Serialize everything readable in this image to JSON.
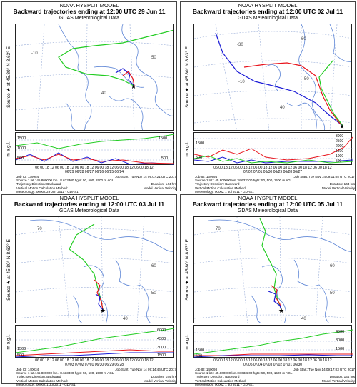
{
  "colors": {
    "red": "#e8141c",
    "blue": "#1a1ad6",
    "green": "#22cc22",
    "coast": "#5e86d6",
    "grid": "#9aaed8"
  },
  "panels": [
    {
      "model": "NOAA HYSPLIT MODEL",
      "title": "Backward trajectories ending at 12:00 UTC 29 Jun 11",
      "met": "GDAS Meteorological Data",
      "source": "Source ★ at   45.80° N   8.63° E",
      "unit": "m a.g.l.",
      "map_labels": [
        "-10",
        "50",
        "40"
      ],
      "height_labels": [
        "1500",
        "1000",
        "500",
        "1500",
        "500"
      ],
      "date_ticks": "06 00 18 12 06 00 18 12 06 00 18 12 06 00 18 12 06 00 18 12 06 00 18 12",
      "date_labels": "06/29   06/28   06/27   06/26   06/25   06/24",
      "info": [
        [
          "Job ID: 139954",
          "Job Start: Tue Nov 14 09:07:21 UTC 2017"
        ],
        [
          "Source 1 lat.: 45.800000  lon.: 8.633300  hgts: 50, 500, 1500 m AGL",
          ""
        ],
        [
          "Trajectory Direction: Backward",
          "Duration: 144 hrs"
        ],
        [
          "Vertical Motion Calculation Method:",
          "Model Vertical Velocity"
        ],
        [
          "Meteorology: 0000Z 29 Jun 2011 - GDAS1",
          ""
        ]
      ]
    },
    {
      "model": "NOAA HYSPLIT MODEL",
      "title": "Backward trajectories ending at 12:00 UTC 02 Jul 11",
      "met": "GDAS Meteorological Data",
      "source": "Source ★ at   45.80° N   8.63° E",
      "unit": "m a.g.l.",
      "map_labels": [
        "-30",
        "60",
        "-10",
        "50",
        "40"
      ],
      "height_labels": [
        "3000",
        "2500",
        "2000",
        "1500",
        "1000",
        "500",
        "1500",
        "500"
      ],
      "date_ticks": "06 00 18 12 06 00 18 12 06 00 18 12 06 00 18 12 06 00 18 12 06 00 18 12",
      "date_labels": "07/02   07/01   06/30   06/29   06/28   06/27",
      "info": [
        [
          "Job ID: 139994",
          "Job Start: Tue Nov 14 09:11:05 UTC 2017"
        ],
        [
          "Source 1 lat.: 45.800000  lon.: 8.633300  hgts: 50, 500, 1500 m AGL",
          ""
        ],
        [
          "Trajectory Direction: Backward",
          "Duration: 144 hrs"
        ],
        [
          "Vertical Motion Calculation Method:",
          "Model Vertical Velocity"
        ],
        [
          "Meteorology: 0000Z 1 Jul 2011 - GDAS1",
          ""
        ]
      ]
    },
    {
      "model": "NOAA HYSPLIT MODEL",
      "title": "Backward trajectories ending at 12:00 UTC 03 Jul 11",
      "met": "GDAS Meteorological Data",
      "source": "Source ★ at   45.80° N   8.63° E",
      "unit": "m a.g.l.",
      "map_labels": [
        "70",
        "60",
        "50",
        "40"
      ],
      "height_labels": [
        "6000",
        "4500",
        "3000",
        "1500",
        "1500",
        "500"
      ],
      "date_ticks": "06 00 18 12 06 00 18 12 06 00 18 12 06 00 18 12 06 00 18 12 06 00 18 12",
      "date_labels": "07/03   07/02   07/01   06/30   06/29   06/28",
      "info": [
        [
          "Job ID: 140034",
          "Job Start: Tue Nov 14 09:14:46 UTC 2017"
        ],
        [
          "Source 1 lat.: 45.800000  lon.: 8.633300  hgts: 50, 500, 1500 m AGL",
          ""
        ],
        [
          "Trajectory Direction: Backward",
          "Duration: 144 hrs"
        ],
        [
          "Vertical Motion Calculation Method:",
          "Model Vertical Velocity"
        ],
        [
          "Meteorology: 0000Z 1 Jul 2011 - GDAS1",
          ""
        ]
      ]
    },
    {
      "model": "NOAA HYSPLIT MODEL",
      "title": "Backward trajectories ending at 12:00 UTC 05 Jul 11",
      "met": "GDAS Meteorological Data",
      "source": "Source ★ at   45.80° N   8.63° E",
      "unit": "m a.g.l.",
      "map_labels": [
        "70",
        "60",
        "50",
        "40"
      ],
      "height_labels": [
        "4500",
        "3000",
        "1500",
        "1500",
        "500"
      ],
      "date_ticks": "06 00 18 12 06 00 18 12 06 00 18 12 06 00 18 12 06 00 18 12 06 00 18 12",
      "date_labels": "07/05   07/04   07/03   07/02   07/01   06/30",
      "info": [
        [
          "Job ID: 140098",
          "Job Start: Tue Nov 14 09:17:03 UTC 2017"
        ],
        [
          "Source 1 lat.: 45.800000  lon.: 8.633300  hgts: 50, 500, 1500 m AGL",
          ""
        ],
        [
          "Trajectory Direction: Backward",
          "Duration: 144 hrs"
        ],
        [
          "Vertical Motion Calculation Method:",
          "Model Vertical Velocity"
        ],
        [
          "Meteorology: 0000Z 1 Jul 2011 - GDAS1",
          ""
        ]
      ]
    }
  ]
}
